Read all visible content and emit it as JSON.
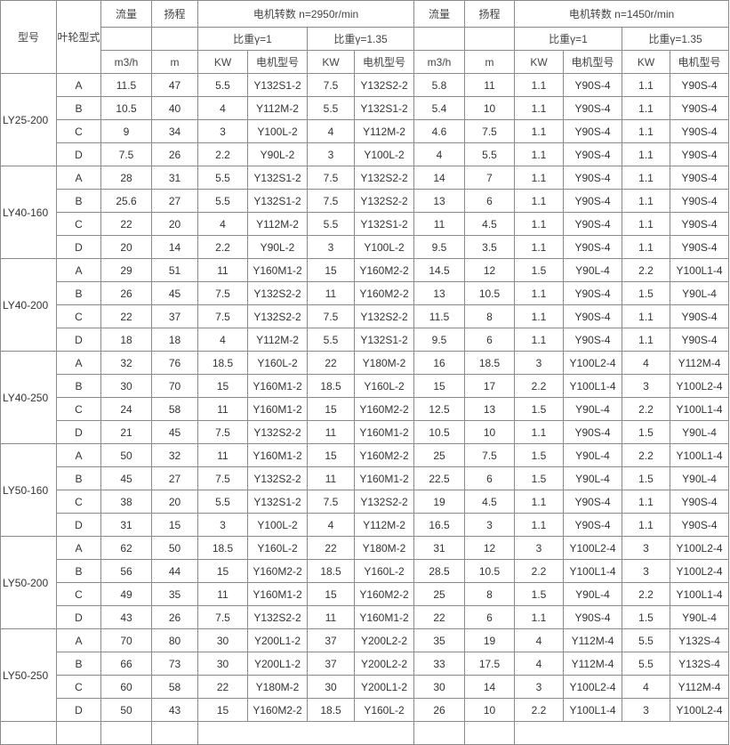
{
  "header": {
    "model": "型号",
    "impeller": "叶轮型式",
    "flow": "流量",
    "head": "扬程",
    "speed_2950": "电机转数  n=2950r/min",
    "speed_1450": "电机转数  n=1450r/min",
    "sg1": "比重γ=1",
    "sg135": "比重γ=1.35",
    "unit_flow": "m3/h",
    "unit_head": "m",
    "unit_kw": "KW",
    "motor_model": "电机型号"
  },
  "groups": [
    {
      "model": "LY25-200",
      "rows": [
        [
          "A",
          "11.5",
          "47",
          "5.5",
          "Y132S1-2",
          "7.5",
          "Y132S2-2",
          "5.8",
          "11",
          "1.1",
          "Y90S-4",
          "1.1",
          "Y90S-4"
        ],
        [
          "B",
          "10.5",
          "40",
          "4",
          "Y112M-2",
          "5.5",
          "Y132S1-2",
          "5.4",
          "10",
          "1.1",
          "Y90S-4",
          "1.1",
          "Y90S-4"
        ],
        [
          "C",
          "9",
          "34",
          "3",
          "Y100L-2",
          "4",
          "Y112M-2",
          "4.6",
          "7.5",
          "1.1",
          "Y90S-4",
          "1.1",
          "Y90S-4"
        ],
        [
          "D",
          "7.5",
          "26",
          "2.2",
          "Y90L-2",
          "3",
          "Y100L-2",
          "4",
          "5.5",
          "1.1",
          "Y90S-4",
          "1.1",
          "Y90S-4"
        ]
      ]
    },
    {
      "model": "LY40-160",
      "rows": [
        [
          "A",
          "28",
          "31",
          "5.5",
          "Y132S1-2",
          "7.5",
          "Y132S2-2",
          "14",
          "7",
          "1.1",
          "Y90S-4",
          "1.1",
          "Y90S-4"
        ],
        [
          "B",
          "25.6",
          "27",
          "5.5",
          "Y132S1-2",
          "7.5",
          "Y132S2-2",
          "13",
          "6",
          "1.1",
          "Y90S-4",
          "1.1",
          "Y90S-4"
        ],
        [
          "C",
          "22",
          "20",
          "4",
          "Y112M-2",
          "5.5",
          "Y132S1-2",
          "11",
          "4.5",
          "1.1",
          "Y90S-4",
          "1.1",
          "Y90S-4"
        ],
        [
          "D",
          "20",
          "14",
          "2.2",
          "Y90L-2",
          "3",
          "Y100L-2",
          "9.5",
          "3.5",
          "1.1",
          "Y90S-4",
          "1.1",
          "Y90S-4"
        ]
      ]
    },
    {
      "model": "LY40-200",
      "rows": [
        [
          "A",
          "29",
          "51",
          "11",
          "Y160M1-2",
          "15",
          "Y160M2-2",
          "14.5",
          "12",
          "1.5",
          "Y90L-4",
          "2.2",
          "Y100L1-4"
        ],
        [
          "B",
          "26",
          "45",
          "7.5",
          "Y132S2-2",
          "11",
          "Y160M2-2",
          "13",
          "10.5",
          "1.1",
          "Y90S-4",
          "1.5",
          "Y90L-4"
        ],
        [
          "C",
          "22",
          "37",
          "7.5",
          "Y132S2-2",
          "7.5",
          "Y132S2-2",
          "11.5",
          "8",
          "1.1",
          "Y90S-4",
          "1.1",
          "Y90S-4"
        ],
        [
          "D",
          "18",
          "18",
          "4",
          "Y112M-2",
          "5.5",
          "Y132S1-2",
          "9.5",
          "6",
          "1.1",
          "Y90S-4",
          "1.1",
          "Y90S-4"
        ]
      ]
    },
    {
      "model": "LY40-250",
      "rows": [
        [
          "A",
          "32",
          "76",
          "18.5",
          "Y160L-2",
          "22",
          "Y180M-2",
          "16",
          "18.5",
          "3",
          "Y100L2-4",
          "4",
          "Y112M-4"
        ],
        [
          "B",
          "30",
          "70",
          "15",
          "Y160M1-2",
          "18.5",
          "Y160L-2",
          "15",
          "17",
          "2.2",
          "Y100L1-4",
          "3",
          "Y100L2-4"
        ],
        [
          "C",
          "24",
          "58",
          "11",
          "Y160M1-2",
          "15",
          "Y160M2-2",
          "12.5",
          "13",
          "1.5",
          "Y90L-4",
          "2.2",
          "Y100L1-4"
        ],
        [
          "D",
          "21",
          "45",
          "7.5",
          "Y132S2-2",
          "11",
          "Y160M1-2",
          "10.5",
          "10",
          "1.1",
          "Y90S-4",
          "1.5",
          "Y90L-4"
        ]
      ]
    },
    {
      "model": "LY50-160",
      "rows": [
        [
          "A",
          "50",
          "32",
          "11",
          "Y160M1-2",
          "15",
          "Y160M2-2",
          "25",
          "7.5",
          "1.5",
          "Y90L-4",
          "2.2",
          "Y100L1-4"
        ],
        [
          "B",
          "45",
          "27",
          "7.5",
          "Y132S2-2",
          "11",
          "Y160M1-2",
          "22.5",
          "6",
          "1.5",
          "Y90L-4",
          "1.5",
          "Y90L-4"
        ],
        [
          "C",
          "38",
          "20",
          "5.5",
          "Y132S1-2",
          "7.5",
          "Y132S2-2",
          "19",
          "4.5",
          "1.1",
          "Y90S-4",
          "1.1",
          "Y90S-4"
        ],
        [
          "D",
          "31",
          "15",
          "3",
          "Y100L-2",
          "4",
          "Y112M-2",
          "16.5",
          "3",
          "1.1",
          "Y90S-4",
          "1.1",
          "Y90S-4"
        ]
      ]
    },
    {
      "model": "LY50-200",
      "rows": [
        [
          "A",
          "62",
          "50",
          "18.5",
          "Y160L-2",
          "22",
          "Y180M-2",
          "31",
          "12",
          "3",
          "Y100L2-4",
          "3",
          "Y100L2-4"
        ],
        [
          "B",
          "56",
          "44",
          "15",
          "Y160M2-2",
          "18.5",
          "Y160L-2",
          "28.5",
          "10.5",
          "2.2",
          "Y100L1-4",
          "3",
          "Y100L2-4"
        ],
        [
          "C",
          "49",
          "35",
          "11",
          "Y160M1-2",
          "15",
          "Y160M2-2",
          "25",
          "8",
          "1.5",
          "Y90L-4",
          "2.2",
          "Y100L1-4"
        ],
        [
          "D",
          "43",
          "26",
          "7.5",
          "Y132S2-2",
          "11",
          "Y160M1-2",
          "22",
          "6",
          "1.1",
          "Y90S-4",
          "1.5",
          "Y90L-4"
        ]
      ]
    },
    {
      "model": "LY50-250",
      "rows": [
        [
          "A",
          "70",
          "80",
          "30",
          "Y200L1-2",
          "37",
          "Y200L2-2",
          "35",
          "19",
          "4",
          "Y112M-4",
          "5.5",
          "Y132S-4"
        ],
        [
          "B",
          "66",
          "73",
          "30",
          "Y200L1-2",
          "37",
          "Y200L2-2",
          "33",
          "17.5",
          "4",
          "Y112M-4",
          "5.5",
          "Y132S-4"
        ],
        [
          "C",
          "60",
          "58",
          "22",
          "Y180M-2",
          "30",
          "Y200L1-2",
          "30",
          "14",
          "3",
          "Y100L2-4",
          "4",
          "Y112M-4"
        ],
        [
          "D",
          "50",
          "43",
          "15",
          "Y160M2-2",
          "18.5",
          "Y160L-2",
          "26",
          "10",
          "2.2",
          "Y100L1-4",
          "3",
          "Y100L2-4"
        ]
      ]
    }
  ]
}
